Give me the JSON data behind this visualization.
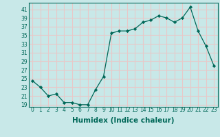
{
  "x": [
    0,
    1,
    2,
    3,
    4,
    5,
    6,
    7,
    8,
    9,
    10,
    11,
    12,
    13,
    14,
    15,
    16,
    17,
    18,
    19,
    20,
    21,
    22,
    23
  ],
  "y": [
    24.5,
    23,
    21,
    21.5,
    19.5,
    19.5,
    19,
    19,
    22.5,
    25.5,
    35.5,
    36,
    36,
    36.5,
    38,
    38.5,
    39.5,
    39,
    38,
    39,
    41.5,
    36,
    32.5,
    28
  ],
  "xlabel": "Humidex (Indice chaleur)",
  "line_color": "#006858",
  "marker": "D",
  "marker_size": 2.2,
  "bg_color": "#c8e8e8",
  "grid_color": "#e8c8c8",
  "ylim": [
    18.5,
    42.5
  ],
  "yticks": [
    19,
    21,
    23,
    25,
    27,
    29,
    31,
    33,
    35,
    37,
    39,
    41
  ],
  "xticks": [
    0,
    1,
    2,
    3,
    4,
    5,
    6,
    7,
    8,
    9,
    10,
    11,
    12,
    13,
    14,
    15,
    16,
    17,
    18,
    19,
    20,
    21,
    22,
    23
  ],
  "tick_fontsize": 5.5,
  "xlabel_fontsize": 7.5
}
